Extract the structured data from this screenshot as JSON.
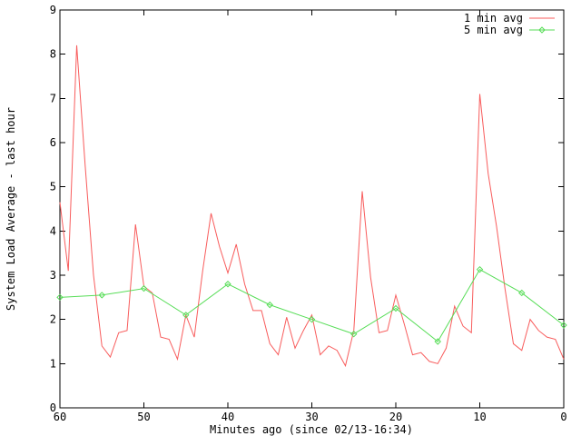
{
  "chart_data": {
    "type": "line",
    "title": "",
    "xlabel": "Minutes ago (since 02/13-16:34)",
    "ylabel": "System Load Average - last hour",
    "xlim": [
      60,
      0
    ],
    "ylim": [
      0,
      9
    ],
    "x_ticks": [
      60,
      50,
      40,
      30,
      20,
      10,
      0
    ],
    "y_ticks": [
      0,
      1,
      2,
      3,
      4,
      5,
      6,
      7,
      8,
      9
    ],
    "grid": false,
    "legend_position": "top-right-inside",
    "axis_color": "#000000",
    "background_color": "#ffffff",
    "series": [
      {
        "name": "1 min avg",
        "color": "#f85c5c",
        "marker": "none",
        "x": [
          60,
          59,
          58,
          57,
          56,
          55,
          54,
          53,
          52,
          51,
          50,
          49,
          48,
          47,
          46,
          45,
          44,
          43,
          42,
          41,
          40,
          39,
          38,
          37,
          36,
          35,
          34,
          33,
          32,
          31,
          30,
          29,
          28,
          27,
          26,
          25,
          24,
          23,
          22,
          21,
          20,
          19,
          18,
          17,
          16,
          15,
          14,
          13,
          12,
          11,
          10,
          9,
          8,
          7,
          6,
          5,
          4,
          3,
          2,
          1,
          0
        ],
        "values": [
          4.65,
          3.1,
          8.2,
          5.5,
          3.0,
          1.4,
          1.15,
          1.7,
          1.75,
          4.15,
          2.75,
          2.6,
          1.6,
          1.55,
          1.1,
          2.1,
          1.6,
          3.1,
          4.4,
          3.65,
          3.05,
          3.7,
          2.8,
          2.2,
          2.2,
          1.45,
          1.2,
          2.05,
          1.35,
          1.75,
          2.1,
          1.2,
          1.4,
          1.3,
          0.95,
          1.75,
          4.9,
          2.95,
          1.7,
          1.75,
          2.55,
          1.9,
          1.2,
          1.25,
          1.05,
          1.0,
          1.35,
          2.3,
          1.85,
          1.7,
          7.1,
          5.3,
          4.1,
          2.7,
          1.45,
          1.3,
          2.0,
          1.75,
          1.6,
          1.55,
          1.1
        ]
      },
      {
        "name": "5 min avg",
        "color": "#57dd57",
        "marker": "diamond",
        "x": [
          60,
          55,
          50,
          45,
          40,
          35,
          30,
          25,
          20,
          15,
          10,
          5,
          0
        ],
        "values": [
          2.5,
          2.55,
          2.7,
          2.1,
          2.8,
          2.33,
          2.0,
          1.67,
          2.25,
          1.5,
          3.13,
          2.6,
          1.87
        ]
      }
    ]
  }
}
